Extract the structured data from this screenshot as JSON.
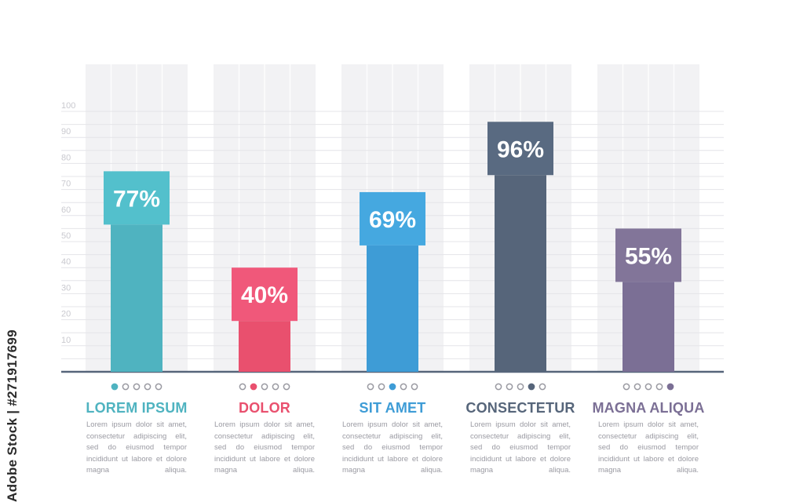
{
  "chart_data": {
    "type": "bar",
    "categories": [
      "LOREM IPSUM",
      "DOLOR",
      "SIT AMET",
      "CONSECTETUR",
      "MAGNA ALIQUA"
    ],
    "values": [
      77,
      40,
      69,
      96,
      55
    ],
    "value_labels": [
      "77%",
      "40%",
      "69%",
      "96%",
      "55%"
    ],
    "ylim": [
      0,
      100
    ],
    "yticks": [
      10,
      20,
      30,
      40,
      50,
      60,
      70,
      80,
      90,
      100
    ],
    "grid": true,
    "colors": [
      "#4fb3c0",
      "#e9506e",
      "#3e9cd6",
      "#56657a",
      "#7b6f95"
    ],
    "dark_colors": [
      "#53c0cc",
      "#f0587a",
      "#45a8e0",
      "#596a81",
      "#827599"
    ]
  },
  "descriptions": [
    "Lorem ipsum dolor sit amet, consectetur adipiscing elit, sed do eiusmod tempor incididunt ut labore et dolore magna aliqua.",
    "Lorem ipsum dolor sit amet, consectetur adipiscing elit, sed do eiusmod tempor incididunt ut labore et dolore magna aliqua.",
    "Lorem ipsum dolor sit amet, consectetur adipiscing elit, sed do eiusmod tempor incididunt ut labore et dolore magna aliqua.",
    "Lorem ipsum dolor sit amet, consectetur adipiscing elit, sed do eiusmod tempor incididunt ut labore et dolore magna aliqua.",
    "Lorem ipsum dolor sit amet, consectetur adipiscing elit, sed do eiusmod tempor incididunt ut labore et dolore magna aliqua."
  ],
  "watermark": "Adobe Stock | #271917699",
  "colors": {
    "panel": "#f2f2f4",
    "baseline": "#56657a",
    "dot_inactive": "#9a9aa2"
  }
}
